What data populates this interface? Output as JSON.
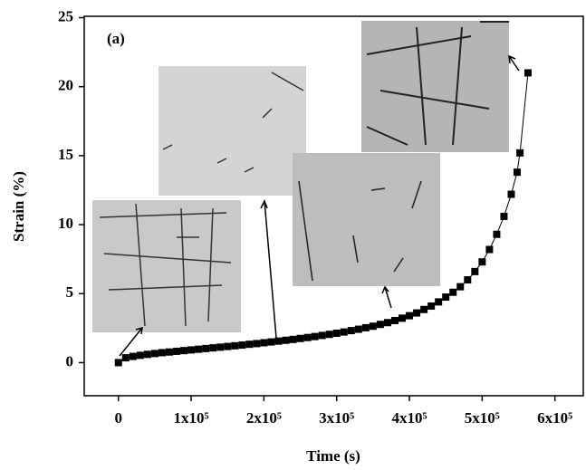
{
  "chart_data": {
    "type": "scatter",
    "xlabel": "Time (s)",
    "ylabel": "Strain (%)",
    "annotation": "(a)",
    "xlim": [
      -47000,
      639000
    ],
    "ylim": [
      -2.4,
      25.1
    ],
    "xticks": [
      0,
      {
        "value": 100000,
        "label": "1x10⁵"
      },
      {
        "value": 200000,
        "label": "2x10⁵"
      },
      {
        "value": 300000,
        "label": "3x10⁵"
      },
      {
        "value": 400000,
        "label": "4x10⁵"
      },
      {
        "value": 500000,
        "label": "5x10⁵"
      },
      {
        "value": 600000,
        "label": "6x10⁵"
      }
    ],
    "yticks": [
      0,
      5,
      10,
      15,
      20,
      25
    ],
    "series": [
      {
        "color": "#000000",
        "x": [
          0,
          10000,
          20000,
          30000,
          40000,
          50000,
          60000,
          70000,
          80000,
          90000,
          100000,
          110000,
          120000,
          130000,
          140000,
          150000,
          160000,
          170000,
          180000,
          190000,
          200000,
          210000,
          220000,
          230000,
          240000,
          250000,
          260000,
          270000,
          280000,
          290000,
          300000,
          310000,
          320000,
          330000,
          340000,
          350000,
          360000,
          370000,
          380000,
          390000,
          400000,
          410000,
          420000,
          430000,
          440000,
          450000,
          460000,
          470000,
          480000,
          490000,
          500000,
          510000,
          520000,
          530000,
          540000,
          548000,
          552000,
          563000
        ],
        "values": [
          0,
          0.35,
          0.45,
          0.53,
          0.6,
          0.66,
          0.72,
          0.77,
          0.82,
          0.87,
          0.92,
          0.97,
          1.02,
          1.07,
          1.12,
          1.17,
          1.22,
          1.27,
          1.33,
          1.38,
          1.44,
          1.5,
          1.56,
          1.62,
          1.68,
          1.75,
          1.82,
          1.89,
          1.97,
          2.05,
          2.13,
          2.22,
          2.32,
          2.42,
          2.53,
          2.64,
          2.77,
          2.9,
          3.05,
          3.22,
          3.4,
          3.6,
          3.85,
          4.1,
          4.4,
          4.75,
          5.1,
          5.5,
          6.0,
          6.6,
          7.3,
          8.2,
          9.3,
          10.6,
          12.2,
          13.8,
          15.2,
          21
        ]
      }
    ]
  }
}
